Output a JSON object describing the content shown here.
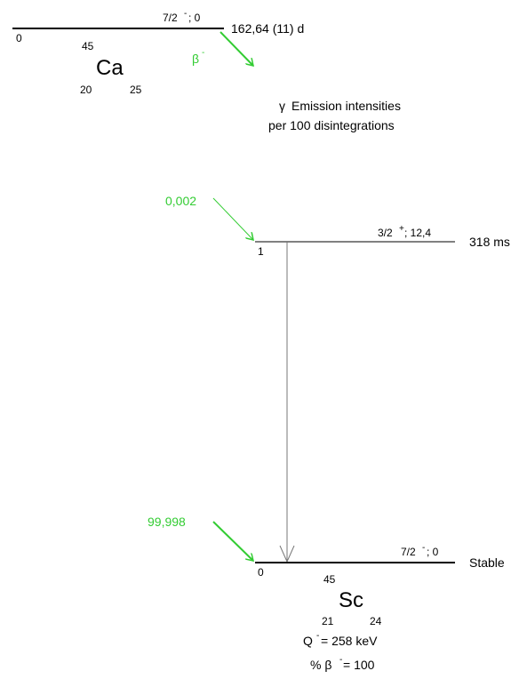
{
  "colors": {
    "beta": "#33cc33",
    "line": "#000000",
    "gamma": "#777777"
  },
  "parent": {
    "mass_number": "45",
    "symbol": "Ca",
    "atomic_number": "20",
    "neutron_number": "25",
    "level_energy": "0",
    "spin_parity": "7/2",
    "spin_sign": "-",
    "energy_suffix": " ; 0",
    "half_life": "162,64 (11) d"
  },
  "decay": {
    "mode": "β",
    "mode_sign": "-"
  },
  "legend": {
    "gamma_symbol": "γ",
    "line1": "Emission intensities",
    "line2": "per 100 disintegrations"
  },
  "levels": [
    {
      "index_label": "1",
      "spin_parity": "3/2",
      "spin_sign": "+",
      "energy_suffix": " ; 12,4",
      "half_life": "318 ms",
      "feeding": "0,002"
    },
    {
      "index_label": "0",
      "spin_parity": "7/2",
      "spin_sign": "-",
      "energy_suffix": " ; 0",
      "half_life": "Stable",
      "feeding": "99,998"
    }
  ],
  "daughter": {
    "mass_number": "45",
    "symbol": "Sc",
    "atomic_number": "21",
    "neutron_number": "24",
    "q_label": "Q",
    "q_sign": "-",
    "q_value": " = 258 keV",
    "branch_prefix": "% β",
    "branch_sign": "-",
    "branch_value": " = 100"
  }
}
